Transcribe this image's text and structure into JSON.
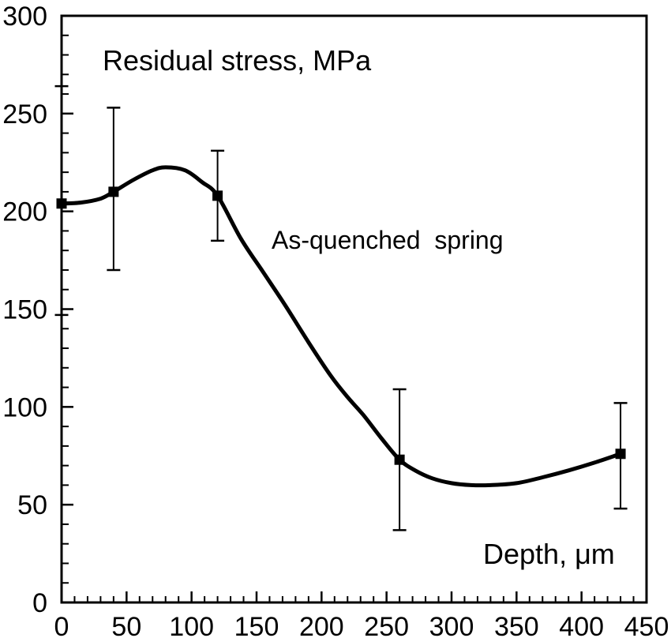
{
  "page": {
    "background": "#ffffff"
  },
  "chart_data": {
    "type": "line",
    "title": "Residual stress, MPa",
    "xlabel": "Depth, μm",
    "ylabel": "Residual stress, MPa",
    "series_label": "As-quenched  spring",
    "ink_color": "#000000",
    "grid": false,
    "legend_position": "none-inline-annotation",
    "xlim": [
      0,
      450
    ],
    "ylim": [
      0,
      300
    ],
    "x_major_tick_step": 50,
    "x_minor_tick_step": 10,
    "y_major_tick_step": 50,
    "y_minor_tick_step": 10,
    "x_tick_labels": [
      "0",
      "50",
      "100",
      "150",
      "200",
      "250",
      "300",
      "350",
      "400",
      "450"
    ],
    "y_tick_labels": [
      "0",
      "50",
      "100",
      "150",
      "200",
      "250",
      "300"
    ],
    "series": [
      {
        "name": "As-quenched spring",
        "marker": "filled-square",
        "line_style": "smooth-solid",
        "points": [
          {
            "x": 0,
            "y": 204,
            "err_low": 147,
            "err_high": 264
          },
          {
            "x": 40,
            "y": 210,
            "err_low": 170,
            "err_high": 253
          },
          {
            "x": 120,
            "y": 208,
            "err_low": 185,
            "err_high": 231
          },
          {
            "x": 260,
            "y": 73,
            "err_low": 37,
            "err_high": 109
          },
          {
            "x": 430,
            "y": 76,
            "err_low": 48,
            "err_high": 102
          }
        ],
        "smooth_curve_samples": [
          [
            0,
            204
          ],
          [
            15,
            204.5
          ],
          [
            30,
            206.5
          ],
          [
            40,
            210
          ],
          [
            55,
            216
          ],
          [
            70,
            221
          ],
          [
            80,
            222.5
          ],
          [
            95,
            221
          ],
          [
            108,
            215
          ],
          [
            120,
            208
          ],
          [
            138,
            186
          ],
          [
            155,
            169
          ],
          [
            172,
            152
          ],
          [
            190,
            133
          ],
          [
            207,
            116
          ],
          [
            220,
            105
          ],
          [
            232,
            96
          ],
          [
            246,
            84
          ],
          [
            260,
            73
          ],
          [
            272,
            67.5
          ],
          [
            285,
            63.5
          ],
          [
            300,
            61
          ],
          [
            315,
            60
          ],
          [
            330,
            60
          ],
          [
            350,
            61
          ],
          [
            370,
            64
          ],
          [
            390,
            67.5
          ],
          [
            410,
            71.5
          ],
          [
            430,
            76
          ]
        ]
      }
    ]
  }
}
